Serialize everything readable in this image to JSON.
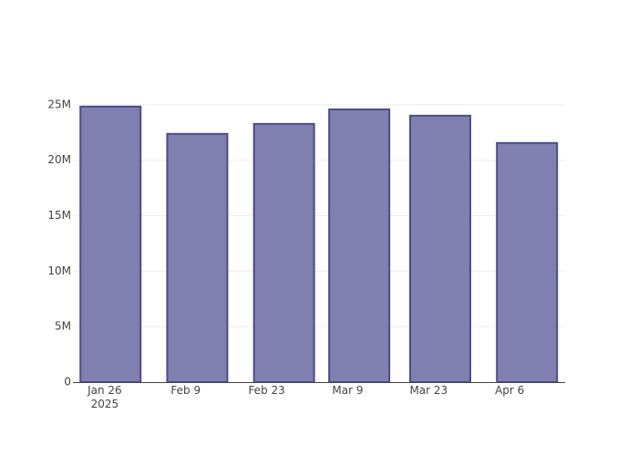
{
  "chart_data": {
    "type": "bar",
    "x": [
      "2025-01-27",
      "2025-02-11",
      "2025-02-26",
      "2025-03-11",
      "2025-03-25",
      "2025-04-09"
    ],
    "values": [
      24840000,
      22380000,
      23280000,
      24590000,
      24020000,
      21560000
    ],
    "color": "#7f7fb0",
    "line_color": "#4c4c8a",
    "xlim": [
      "2025-01-20T12:00",
      "2025-04-15T14:00"
    ],
    "xticks": [
      {
        "value": "2025-01-26",
        "label": "Jan 26\n2025"
      },
      {
        "value": "2025-02-09",
        "label": "Feb 9"
      },
      {
        "value": "2025-02-23",
        "label": "Feb 23"
      },
      {
        "value": "2025-03-09",
        "label": "Mar 9"
      },
      {
        "value": "2025-03-23",
        "label": "Mar 23"
      },
      {
        "value": "2025-04-06",
        "label": "Apr 6"
      }
    ],
    "ylim": [
      0,
      25200000
    ],
    "yticks": [
      0,
      {
        "value": 5000000,
        "label": "5M"
      },
      {
        "value": 10000000,
        "label": "10M"
      },
      {
        "value": 15000000,
        "label": "15M"
      },
      {
        "value": 20000000,
        "label": "20M"
      },
      {
        "value": 25000000,
        "label": "25M"
      }
    ],
    "grid": true
  }
}
